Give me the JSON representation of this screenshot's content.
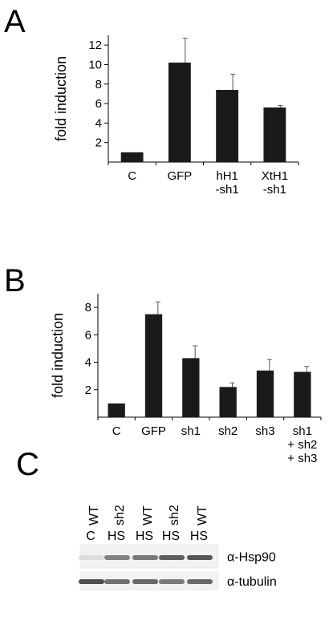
{
  "chart_data": [
    {
      "type": "bar",
      "panel": "A",
      "ylabel": "fold induction",
      "ylim": [
        0,
        13
      ],
      "yticks": [
        2,
        4,
        6,
        8,
        10,
        12
      ],
      "categories": [
        [
          "C"
        ],
        [
          "GFP"
        ],
        [
          "hH1",
          "-sh1"
        ],
        [
          "XtH1",
          "-sh1"
        ]
      ],
      "values": [
        1.0,
        10.2,
        7.4,
        5.6
      ],
      "errors": [
        0,
        2.5,
        1.6,
        0.2
      ],
      "color": "#1a1a1a"
    },
    {
      "type": "bar",
      "panel": "B",
      "ylabel": "fold induction",
      "ylim": [
        0,
        9
      ],
      "yticks": [
        2,
        4,
        6,
        8
      ],
      "categories": [
        [
          "C"
        ],
        [
          "GFP"
        ],
        [
          "sh1"
        ],
        [
          "sh2"
        ],
        [
          "sh3"
        ],
        [
          "sh1",
          "+ sh2",
          "+ sh3"
        ]
      ],
      "values": [
        1.0,
        7.5,
        4.3,
        2.2,
        3.4,
        3.3
      ],
      "errors": [
        0,
        0.9,
        0.9,
        0.3,
        0.8,
        0.4
      ],
      "color": "#1a1a1a"
    }
  ],
  "blot": {
    "panel": "C",
    "genotypes": [
      "WT",
      "sh2",
      "WT",
      "sh2",
      "WT"
    ],
    "conditions": [
      "C",
      "HS",
      "HS",
      "HS",
      "HS"
    ],
    "bands": [
      {
        "label": "α-Hsp90",
        "intensities": [
          0.05,
          0.55,
          0.6,
          0.75,
          0.8
        ]
      },
      {
        "label": "α-tubulin",
        "intensities": [
          0.85,
          0.65,
          0.7,
          0.6,
          0.7
        ]
      }
    ]
  }
}
